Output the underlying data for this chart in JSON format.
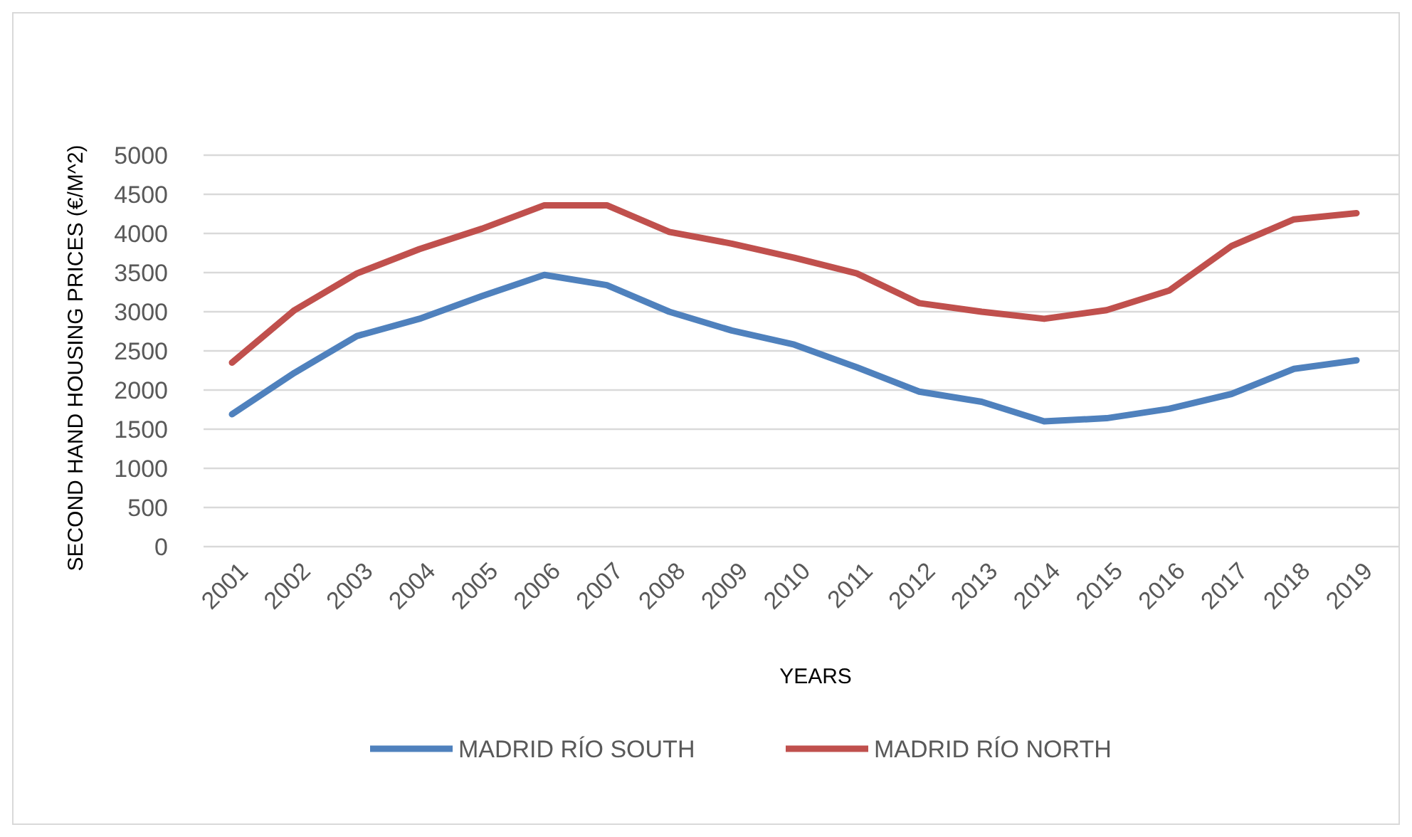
{
  "chart_data": {
    "type": "line",
    "xlabel": "YEARS",
    "ylabel": "SECOND HAND HOUSING PRICES (€/M^2)",
    "categories": [
      "2001",
      "2002",
      "2003",
      "2004",
      "2005",
      "2006",
      "2007",
      "2008",
      "2009",
      "2010",
      "2011",
      "2012",
      "2013",
      "2014",
      "2015",
      "2016",
      "2017",
      "2018",
      "2019"
    ],
    "series": [
      {
        "name": "MADRID RÍO SOUTH",
        "color": "#4f81bd",
        "values": [
          1690,
          2220,
          2690,
          2910,
          3200,
          3470,
          3340,
          3000,
          2760,
          2580,
          2290,
          1980,
          1850,
          1600,
          1640,
          1760,
          1950,
          2270,
          2380
        ]
      },
      {
        "name": "MADRID RÍO NORTH",
        "color": "#c0504d",
        "values": [
          2350,
          3020,
          3490,
          3800,
          4060,
          4360,
          4360,
          4020,
          3870,
          3690,
          3490,
          3110,
          3000,
          2910,
          3020,
          3270,
          3840,
          4180,
          4260
        ]
      }
    ],
    "ylim": [
      0,
      5000
    ],
    "yticks": [
      0,
      500,
      1000,
      1500,
      2000,
      2500,
      3000,
      3500,
      4000,
      4500,
      5000
    ],
    "grid": "y",
    "legend": "bottom",
    "marker": "none",
    "line_style": "solid"
  }
}
